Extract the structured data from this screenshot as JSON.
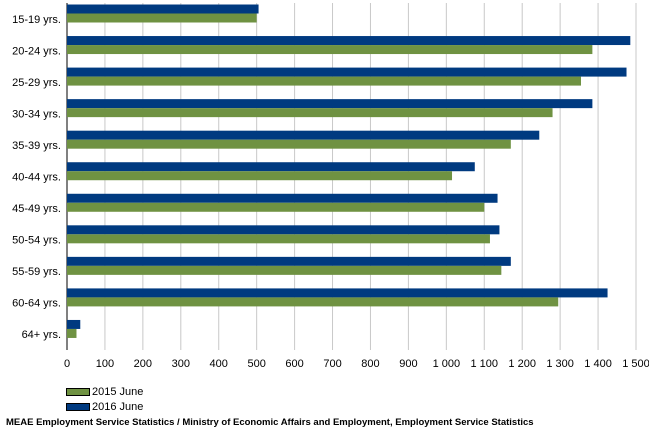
{
  "chart_data": {
    "type": "bar",
    "orientation": "horizontal",
    "categories": [
      "15-19 yrs.",
      "20-24 yrs.",
      "25-29 yrs.",
      "30-34 yrs.",
      "35-39 yrs.",
      "40-44 yrs.",
      "45-49 yrs.",
      "50-54 yrs.",
      "55-59 yrs.",
      "60-64 yrs.",
      "64+ yrs."
    ],
    "series": [
      {
        "name": "2016 June",
        "color": "#003a80",
        "values": [
          505,
          1485,
          1475,
          1385,
          1245,
          1075,
          1135,
          1140,
          1170,
          1425,
          35
        ]
      },
      {
        "name": "2015 June",
        "color": "#6f9242",
        "values": [
          500,
          1385,
          1355,
          1280,
          1170,
          1015,
          1100,
          1115,
          1145,
          1295,
          25
        ]
      }
    ],
    "xlim": [
      0,
      1500
    ],
    "xticks": [
      0,
      100,
      200,
      300,
      400,
      500,
      600,
      700,
      800,
      900,
      1000,
      1100,
      1200,
      1300,
      1400,
      1500
    ],
    "xtick_labels": [
      "0",
      "100",
      "200",
      "300",
      "400",
      "500",
      "600",
      "700",
      "800",
      "900",
      "1 000",
      "1 100",
      "1 200",
      "1 300",
      "1 400",
      "1 500"
    ],
    "grid": true,
    "legend_position": "bottom-left",
    "legend": [
      "2015 June",
      "2016 June"
    ],
    "source": "MEAE Employment Service Statistics / Ministry of Economic Affairs and Employment, Employment Service Statistics"
  },
  "colors": {
    "series_2016": "#003a80",
    "series_2015": "#6f9242",
    "grid": "#c8c8c8",
    "axis": "#000000"
  }
}
